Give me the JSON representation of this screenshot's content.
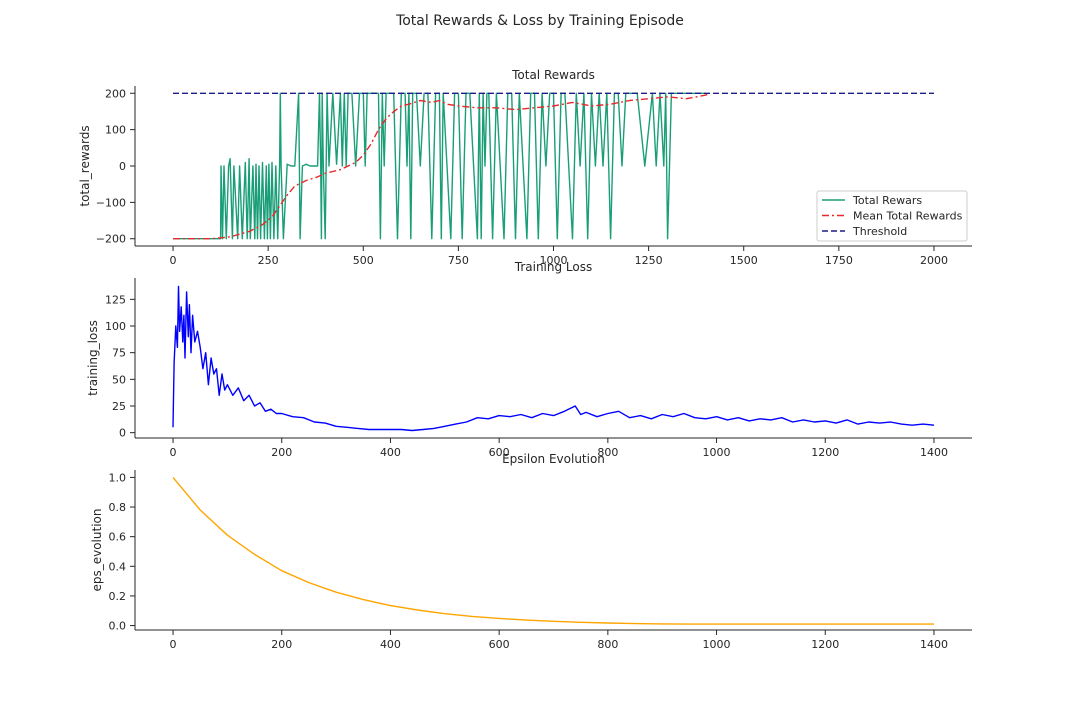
{
  "figure_title": "Total Rewards & Loss by Training Episode",
  "chart_data": [
    {
      "type": "line",
      "title": "Total Rewards",
      "xlabel": "",
      "ylabel": "total_rewards",
      "xlim": [
        -100,
        2100
      ],
      "ylim": [
        -220,
        220
      ],
      "xticks": [
        0,
        250,
        500,
        750,
        1000,
        1250,
        1500,
        1750,
        2000
      ],
      "yticks": [
        -200,
        -100,
        0,
        100,
        200
      ],
      "grid": false,
      "legend_position": "lower-right",
      "series": [
        {
          "name": "Total Rewars",
          "color": "#1a9e77",
          "style": "solid",
          "x": [
            0,
            125,
            126,
            130,
            134,
            140,
            146,
            150,
            156,
            160,
            170,
            175,
            182,
            190,
            195,
            200,
            203,
            210,
            215,
            218,
            222,
            226,
            230,
            235,
            240,
            245,
            248,
            252,
            256,
            260,
            265,
            270,
            275,
            280,
            282,
            284,
            290,
            300,
            310,
            320,
            330,
            332,
            334,
            340,
            350,
            360,
            370,
            380,
            385,
            388,
            390,
            392,
            395,
            400,
            405,
            410,
            420,
            430,
            440,
            445,
            450,
            455,
            460,
            470,
            480,
            490,
            500,
            505,
            510,
            520,
            530,
            540,
            545,
            550,
            555,
            560,
            570,
            580,
            590,
            600,
            610,
            615,
            620,
            625,
            630,
            640,
            650,
            660,
            670,
            680,
            690,
            700,
            705,
            710,
            720,
            730,
            740,
            750,
            760,
            770,
            780,
            790,
            800,
            805,
            810,
            815,
            820,
            825,
            830,
            840,
            850,
            860,
            870,
            880,
            890,
            900,
            910,
            920,
            930,
            940,
            950,
            960,
            970,
            980,
            990,
            1000,
            1010,
            1020,
            1030,
            1040,
            1050,
            1060,
            1070,
            1080,
            1090,
            1100,
            1110,
            1120,
            1130,
            1140,
            1150,
            1160,
            1170,
            1180,
            1190,
            1200,
            1220,
            1240,
            1260,
            1270,
            1280,
            1290,
            1295,
            1300,
            1310,
            1400
          ],
          "y": [
            -200,
            -200,
            0,
            -200,
            0,
            -200,
            0,
            20,
            -200,
            0,
            -200,
            0,
            -200,
            10,
            -200,
            20,
            -200,
            0,
            -200,
            5,
            -200,
            0,
            -200,
            10,
            -200,
            0,
            -200,
            5,
            -200,
            10,
            -200,
            0,
            -200,
            0,
            200,
            0,
            -200,
            5,
            0,
            0,
            200,
            0,
            -200,
            0,
            5,
            0,
            0,
            0,
            200,
            0,
            -200,
            200,
            0,
            -200,
            200,
            0,
            200,
            5,
            200,
            0,
            200,
            0,
            200,
            200,
            0,
            200,
            200,
            0,
            200,
            200,
            200,
            200,
            -200,
            200,
            0,
            200,
            200,
            200,
            -200,
            200,
            200,
            0,
            200,
            -200,
            200,
            200,
            0,
            200,
            200,
            -200,
            200,
            200,
            -200,
            200,
            0,
            -200,
            200,
            200,
            -200,
            200,
            200,
            0,
            -200,
            200,
            -200,
            200,
            0,
            200,
            200,
            -200,
            200,
            0,
            -200,
            200,
            200,
            -200,
            200,
            0,
            -200,
            200,
            200,
            -200,
            200,
            0,
            200,
            200,
            -200,
            200,
            200,
            0,
            -200,
            200,
            0,
            200,
            -200,
            200,
            0,
            200,
            0,
            200,
            -200,
            200,
            200,
            0,
            200,
            200,
            200,
            0,
            200,
            0,
            200,
            0,
            200,
            -200,
            200,
            200
          ]
        },
        {
          "name": "Mean Total Rewards",
          "color": "#e8282a",
          "style": "dashdot",
          "x": [
            0,
            100,
            150,
            200,
            230,
            260,
            280,
            300,
            320,
            350,
            380,
            400,
            420,
            440,
            460,
            480,
            500,
            520,
            540,
            560,
            580,
            600,
            620,
            650,
            680,
            700,
            720,
            750,
            800,
            850,
            900,
            950,
            1000,
            1050,
            1100,
            1150,
            1200,
            1250,
            1300,
            1350,
            1400,
            1410
          ],
          "y": [
            -200,
            -200,
            -195,
            -180,
            -165,
            -140,
            -110,
            -80,
            -55,
            -40,
            -30,
            -20,
            -15,
            -10,
            0,
            10,
            30,
            60,
            100,
            130,
            150,
            165,
            170,
            180,
            175,
            180,
            170,
            165,
            160,
            160,
            155,
            160,
            165,
            175,
            165,
            170,
            180,
            185,
            190,
            185,
            195,
            200
          ]
        },
        {
          "name": "Threshold",
          "color": "#1c1c8c",
          "style": "dashed",
          "x": [
            0,
            2000
          ],
          "y": [
            200,
            200
          ]
        }
      ]
    },
    {
      "type": "line",
      "title": "Training Loss",
      "xlabel": "",
      "ylabel": "training_loss",
      "xlim": [
        -70,
        1470
      ],
      "ylim": [
        -5,
        145
      ],
      "xticks": [
        0,
        200,
        400,
        600,
        800,
        1000,
        1200,
        1400
      ],
      "yticks": [
        0,
        25,
        50,
        75,
        100,
        125
      ],
      "grid": false,
      "series": [
        {
          "name": "",
          "color": "#0000ff",
          "style": "solid",
          "x": [
            0,
            2,
            5,
            8,
            10,
            12,
            15,
            18,
            20,
            22,
            25,
            28,
            30,
            33,
            36,
            40,
            45,
            50,
            55,
            60,
            65,
            70,
            75,
            80,
            85,
            90,
            95,
            100,
            110,
            120,
            130,
            140,
            150,
            160,
            170,
            180,
            190,
            200,
            220,
            240,
            260,
            280,
            300,
            320,
            340,
            360,
            380,
            400,
            420,
            440,
            460,
            480,
            500,
            520,
            540,
            560,
            580,
            600,
            620,
            640,
            660,
            680,
            700,
            720,
            740,
            750,
            760,
            780,
            800,
            820,
            840,
            860,
            880,
            900,
            920,
            940,
            960,
            980,
            1000,
            1020,
            1040,
            1060,
            1080,
            1100,
            1120,
            1140,
            1160,
            1180,
            1200,
            1220,
            1240,
            1260,
            1280,
            1300,
            1320,
            1340,
            1360,
            1380,
            1400
          ],
          "y": [
            5,
            65,
            100,
            80,
            137,
            95,
            118,
            85,
            110,
            70,
            132,
            90,
            120,
            75,
            110,
            85,
            95,
            80,
            60,
            75,
            45,
            70,
            55,
            60,
            35,
            55,
            40,
            45,
            35,
            42,
            30,
            35,
            25,
            28,
            20,
            22,
            18,
            18,
            15,
            14,
            10,
            9,
            6,
            5,
            4,
            3,
            3,
            3,
            3,
            2,
            3,
            4,
            6,
            8,
            10,
            14,
            13,
            16,
            15,
            17,
            14,
            18,
            16,
            20,
            25,
            17,
            19,
            15,
            18,
            20,
            14,
            16,
            13,
            17,
            15,
            18,
            14,
            13,
            15,
            12,
            14,
            11,
            13,
            12,
            14,
            10,
            12,
            10,
            11,
            9,
            12,
            8,
            10,
            9,
            10,
            8,
            7,
            8,
            7
          ]
        }
      ]
    },
    {
      "type": "line",
      "title": "Epsilon Evolution",
      "xlabel": "",
      "ylabel": "eps_evolution",
      "xlim": [
        -70,
        1470
      ],
      "ylim": [
        -0.03,
        1.05
      ],
      "xticks": [
        0,
        200,
        400,
        600,
        800,
        1000,
        1200,
        1400
      ],
      "yticks": [
        0.0,
        0.2,
        0.4,
        0.6,
        0.8,
        1.0
      ],
      "grid": false,
      "series": [
        {
          "name": "",
          "color": "#ffa500",
          "style": "solid",
          "x": [
            0,
            50,
            100,
            150,
            200,
            250,
            300,
            350,
            400,
            450,
            500,
            550,
            600,
            650,
            700,
            750,
            800,
            850,
            900,
            950,
            1000,
            1100,
            1200,
            1300,
            1400
          ],
          "y": [
            1.0,
            0.78,
            0.61,
            0.48,
            0.37,
            0.29,
            0.225,
            0.175,
            0.135,
            0.105,
            0.08,
            0.062,
            0.048,
            0.037,
            0.029,
            0.022,
            0.017,
            0.013,
            0.011,
            0.01,
            0.01,
            0.01,
            0.01,
            0.01,
            0.01
          ]
        }
      ]
    }
  ]
}
